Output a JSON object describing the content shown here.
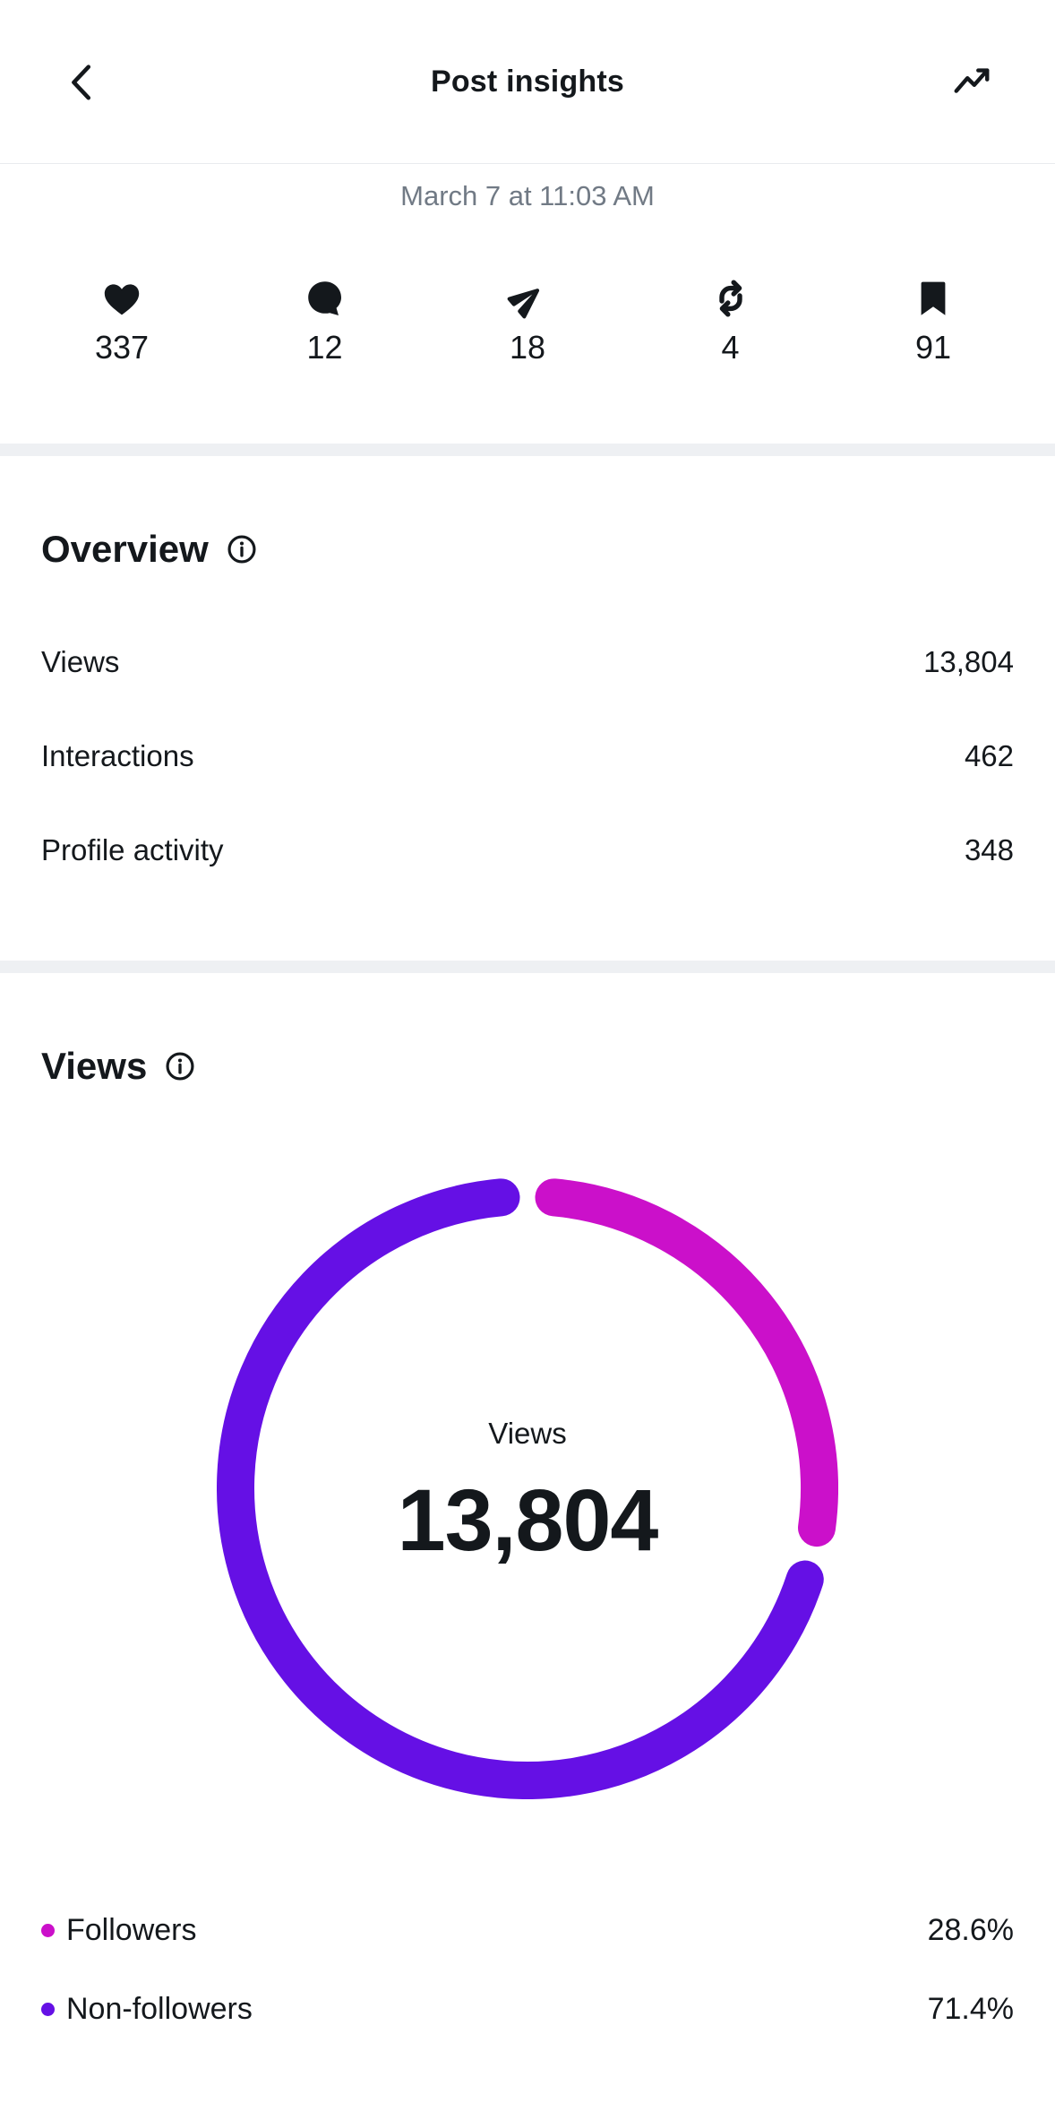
{
  "header": {
    "title": "Post insights"
  },
  "post": {
    "timestamp": "March 7 at 11:03 AM"
  },
  "stats": [
    {
      "name": "likes",
      "icon": "heart-icon",
      "value": "337"
    },
    {
      "name": "comments",
      "icon": "comment-icon",
      "value": "12"
    },
    {
      "name": "shares",
      "icon": "share-icon",
      "value": "18"
    },
    {
      "name": "reposts",
      "icon": "repost-icon",
      "value": "4"
    },
    {
      "name": "saves",
      "icon": "bookmark-icon",
      "value": "91"
    }
  ],
  "overview": {
    "title": "Overview",
    "rows": [
      {
        "label": "Views",
        "value": "13,804"
      },
      {
        "label": "Interactions",
        "value": "462"
      },
      {
        "label": "Profile activity",
        "value": "348"
      }
    ]
  },
  "views_section": {
    "title": "Views"
  },
  "chart_data": {
    "type": "pie",
    "variant": "donut",
    "title": "Views",
    "center_label": "Views",
    "center_value": "13,804",
    "total": 13804,
    "slices": [
      {
        "label": "Followers",
        "percent": 28.6,
        "percent_label": "28.6%",
        "color": "#cb10ca"
      },
      {
        "label": "Non-followers",
        "percent": 71.4,
        "percent_label": "71.4%",
        "color": "#6510e5"
      }
    ],
    "legend_position": "bottom",
    "start_angle_deg": 0,
    "segment_gap_deg": 3
  },
  "colors": {
    "accent_pink": "#cb10ca",
    "accent_purple": "#6510e5",
    "text_primary": "#14181c",
    "text_secondary": "#717a85",
    "divider_band": "#eef0f3"
  }
}
